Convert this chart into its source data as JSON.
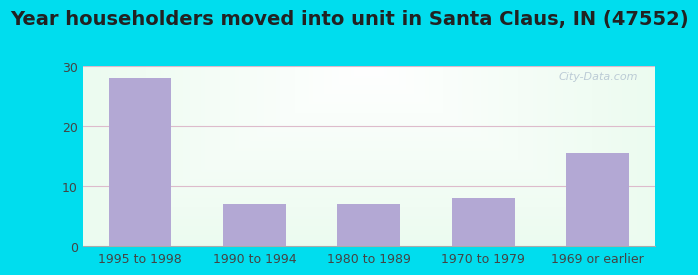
{
  "categories": [
    "1995 to 1998",
    "1990 to 1994",
    "1980 to 1989",
    "1970 to 1979",
    "1969 or earlier"
  ],
  "values": [
    28,
    7,
    7,
    8,
    15.5
  ],
  "bar_color": "#b3a8d4",
  "title": "Year householders moved into unit in Santa Claus, IN (47552)",
  "ylim": [
    0,
    30
  ],
  "yticks": [
    0,
    10,
    20,
    30
  ],
  "outer_bg": "#00ddee",
  "grid_color": "#ddbbcc",
  "title_fontsize": 14,
  "tick_fontsize": 9,
  "watermark": "City-Data.com",
  "bar_width": 0.55
}
